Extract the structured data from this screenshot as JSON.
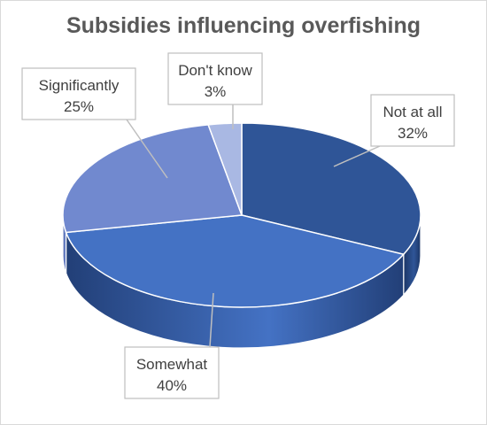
{
  "chart_data": {
    "type": "pie",
    "title": "Subsidies influencing overfishing",
    "slices": [
      {
        "label": "Not at all",
        "value": 32,
        "value_label": "32%",
        "color": "#2f5597"
      },
      {
        "label": "Somewhat",
        "value": 40,
        "value_label": "40%",
        "color": "#4472c4"
      },
      {
        "label": "Significantly",
        "value": 25,
        "value_label": "25%",
        "color": "#7189cf"
      },
      {
        "label": "Don't know",
        "value": 3,
        "value_label": "3%",
        "color": "#a9b8e3"
      }
    ],
    "legend": "none",
    "style": "3d-exploded-none"
  }
}
